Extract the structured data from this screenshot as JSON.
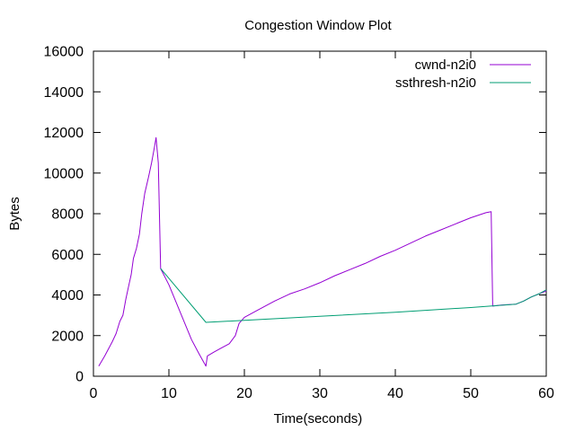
{
  "chart_data": {
    "type": "line",
    "title": "Congestion Window Plot",
    "xlabel": "Time(seconds)",
    "ylabel": "Bytes",
    "xlim": [
      0,
      60
    ],
    "ylim": [
      0,
      16000
    ],
    "x_ticks": [
      0,
      10,
      20,
      30,
      40,
      50,
      60
    ],
    "y_ticks": [
      0,
      2000,
      4000,
      6000,
      8000,
      10000,
      12000,
      14000,
      16000
    ],
    "grid": false,
    "legend_position": "top-right",
    "series": [
      {
        "name": "cwnd-n2i0",
        "color": "#9400d3",
        "points": [
          [
            0.7,
            500
          ],
          [
            1.5,
            1000
          ],
          [
            2.5,
            1700
          ],
          [
            3.0,
            2100
          ],
          [
            3.5,
            2700
          ],
          [
            3.9,
            3000
          ],
          [
            4.3,
            3800
          ],
          [
            4.7,
            4500
          ],
          [
            5.0,
            5000
          ],
          [
            5.3,
            5800
          ],
          [
            5.7,
            6300
          ],
          [
            6.1,
            7000
          ],
          [
            6.4,
            8000
          ],
          [
            6.8,
            9000
          ],
          [
            7.3,
            9800
          ],
          [
            7.7,
            10500
          ],
          [
            8.1,
            11300
          ],
          [
            8.3,
            11750
          ],
          [
            8.6,
            10500
          ],
          [
            8.9,
            5300
          ],
          [
            10.0,
            4500
          ],
          [
            11.0,
            3600
          ],
          [
            12.0,
            2700
          ],
          [
            13.0,
            1800
          ],
          [
            14.0,
            1100
          ],
          [
            14.9,
            500
          ],
          [
            15.1,
            1000
          ],
          [
            16.0,
            1200
          ],
          [
            17.0,
            1400
          ],
          [
            18.0,
            1600
          ],
          [
            18.8,
            2000
          ],
          [
            19.3,
            2600
          ],
          [
            20.0,
            2900
          ],
          [
            22.0,
            3300
          ],
          [
            24.0,
            3700
          ],
          [
            26.0,
            4050
          ],
          [
            28.0,
            4300
          ],
          [
            30.0,
            4600
          ],
          [
            32.0,
            4950
          ],
          [
            34.0,
            5250
          ],
          [
            36.0,
            5550
          ],
          [
            38.0,
            5900
          ],
          [
            40.0,
            6200
          ],
          [
            42.0,
            6550
          ],
          [
            44.0,
            6900
          ],
          [
            46.0,
            7200
          ],
          [
            48.0,
            7500
          ],
          [
            50.0,
            7800
          ],
          [
            52.0,
            8050
          ],
          [
            52.7,
            8100
          ],
          [
            52.9,
            3450
          ],
          [
            54.0,
            3500
          ],
          [
            56.0,
            3550
          ],
          [
            57.0,
            3700
          ],
          [
            58.0,
            3900
          ],
          [
            59.0,
            4050
          ],
          [
            60.0,
            4200
          ]
        ]
      },
      {
        "name": "ssthresh-n2i0",
        "color": "#009e73",
        "points": [
          [
            8.9,
            5300
          ],
          [
            14.9,
            2650
          ],
          [
            20.0,
            2750
          ],
          [
            30.0,
            2950
          ],
          [
            40.0,
            3150
          ],
          [
            50.0,
            3380
          ],
          [
            56.0,
            3550
          ],
          [
            57.0,
            3700
          ],
          [
            58.0,
            3900
          ],
          [
            59.0,
            4050
          ],
          [
            60.0,
            4250
          ]
        ]
      }
    ]
  }
}
